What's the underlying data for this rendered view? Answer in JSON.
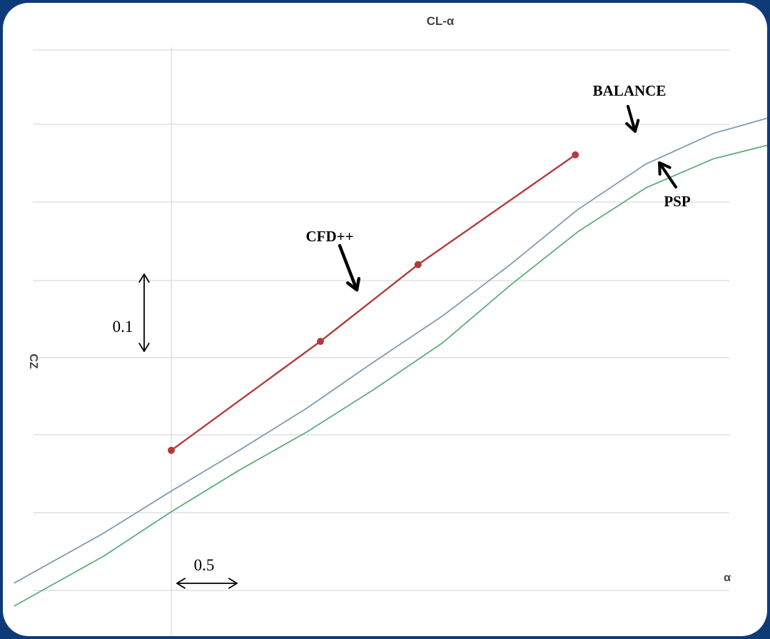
{
  "chart_data": {
    "type": "line",
    "title": "CL-α",
    "xlabel": "α",
    "ylabel": "CZ",
    "grid": true,
    "x_scale_label": "0.5",
    "y_scale_label": "0.1",
    "series": [
      {
        "name": "BALANCE",
        "color": "#7f9cb3",
        "x": [
          -1.16,
          -0.5,
          0,
          0.5,
          1.0,
          1.5,
          2.0,
          2.5,
          3.0,
          3.5,
          4.0,
          4.5,
          5.0
        ],
        "y": [
          -0.29,
          -0.225,
          -0.17,
          -0.117,
          -0.062,
          -0.001,
          0.058,
          0.125,
          0.197,
          0.256,
          0.296,
          0.321,
          0.34
        ]
      },
      {
        "name": "PSP",
        "color": "#5cae7a",
        "x": [
          -1.16,
          -0.5,
          0,
          0.5,
          1.0,
          1.5,
          2.0,
          2.5,
          3.0,
          3.5,
          4.0,
          4.5,
          5.0
        ],
        "y": [
          -0.32,
          -0.255,
          -0.197,
          -0.143,
          -0.093,
          -0.037,
          0.023,
          0.098,
          0.168,
          0.225,
          0.263,
          0.285,
          0.298
        ]
      },
      {
        "name": "CFD++",
        "color": "#b33a3a",
        "markers": true,
        "x": [
          0,
          1.1,
          1.82,
          2.98
        ],
        "y": [
          -0.117,
          0.025,
          0.125,
          0.268
        ]
      }
    ],
    "annotations": [
      {
        "text": "BALANCE",
        "target_series": "BALANCE"
      },
      {
        "text": "PSP",
        "target_series": "PSP"
      },
      {
        "text": "CFD++",
        "target_series": "CFD++"
      }
    ]
  }
}
